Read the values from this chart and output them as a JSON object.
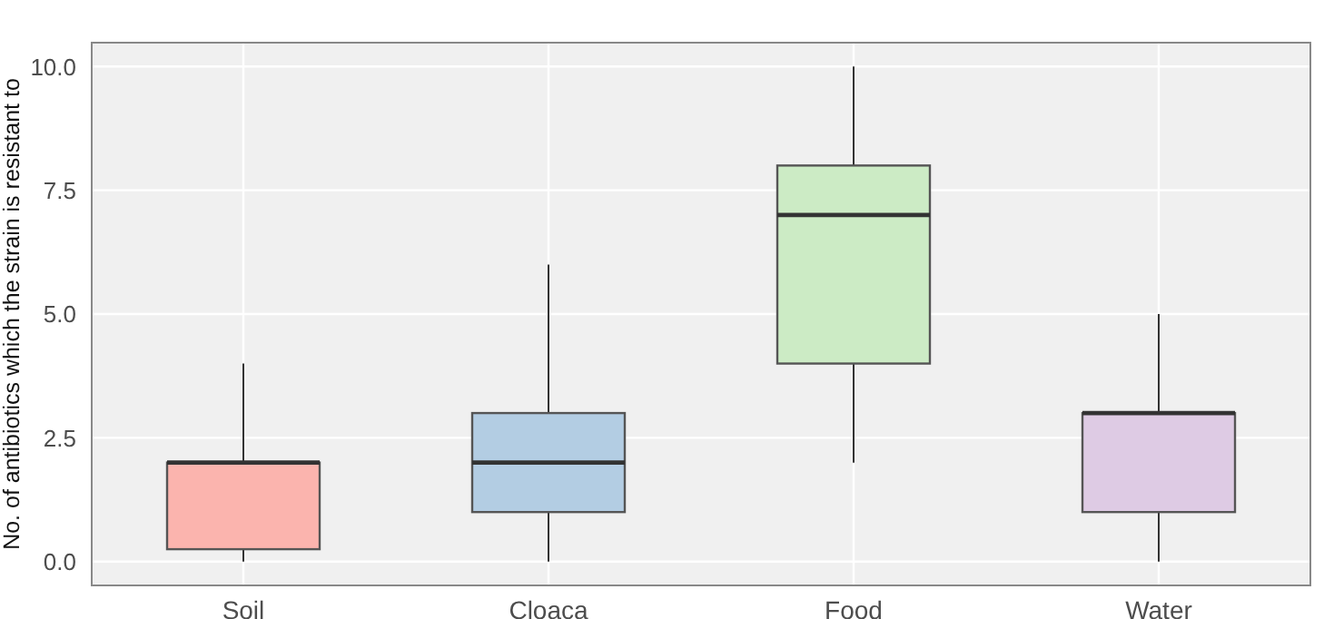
{
  "chart_data": {
    "type": "box",
    "ylabel": "No. of antibiotics which the strain is resistant to",
    "categories": [
      "Soil",
      "Cloaca",
      "Food",
      "Water"
    ],
    "boxes": [
      {
        "low": 0,
        "q1": 0.25,
        "median": 2,
        "q3": 2,
        "high": 4
      },
      {
        "low": 0,
        "q1": 1,
        "median": 2,
        "q3": 3,
        "high": 6
      },
      {
        "low": 2,
        "q1": 4,
        "median": 7,
        "q3": 8,
        "high": 10
      },
      {
        "low": 0,
        "q1": 1,
        "median": 3,
        "q3": 3,
        "high": 5
      }
    ],
    "colors": [
      "#fbb4ae",
      "#b3cde3",
      "#ccebc5",
      "#decbe4"
    ],
    "ylim": [
      -0.5,
      10.5
    ],
    "yticks": [
      {
        "value": 0,
        "label": "0.0"
      },
      2.5,
      {
        "value": 5,
        "label": "5.0"
      },
      7.5,
      {
        "value": 10,
        "label": "10.0"
      }
    ],
    "grid": true
  }
}
